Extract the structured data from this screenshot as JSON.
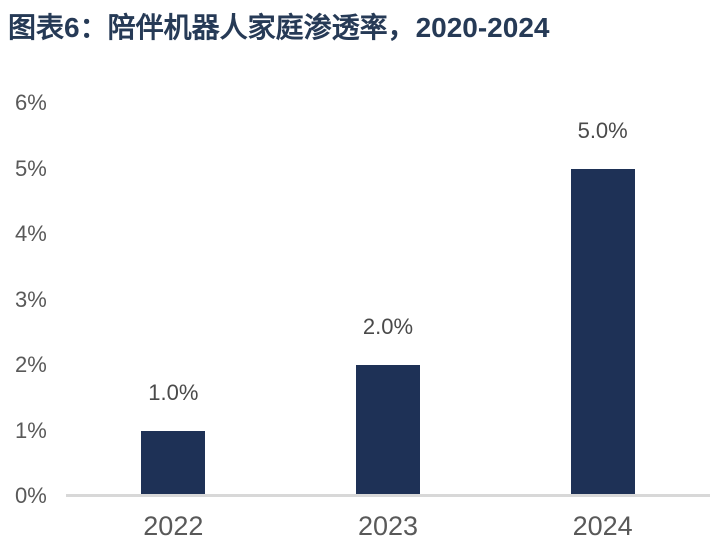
{
  "figure": {
    "title": "图表6：陪伴机器人家庭渗透率，2020-2024"
  },
  "colors": {
    "background": "#ffffff",
    "title": "#263a56",
    "bar": "#1e3156",
    "axis_line": "#d8d8d8",
    "tick_label": "#595959",
    "x_axis_label": "#595959",
    "value_label": "#4a4a4a"
  },
  "chart_data": {
    "type": "bar",
    "title": "图表6：陪伴机器人家庭渗透率，2020-2024",
    "categories": [
      "2022",
      "2023",
      "2024"
    ],
    "values": [
      1.0,
      2.0,
      5.0
    ],
    "value_labels": [
      "1.0%",
      "2.0%",
      "5.0%"
    ],
    "xlabel": "",
    "ylabel": "",
    "ylim": [
      0,
      6
    ],
    "ytick_step": 1,
    "ytick_labels": [
      "0%",
      "1%",
      "2%",
      "3%",
      "4%",
      "5%",
      "6%"
    ],
    "grid": false,
    "legend": "none"
  }
}
